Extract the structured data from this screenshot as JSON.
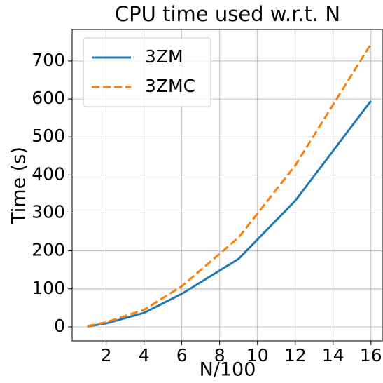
{
  "chart_data": {
    "type": "line",
    "title": "CPU time used w.r.t. N",
    "xlabel": "N/100",
    "ylabel": "Time (s)",
    "x": [
      1,
      2,
      4,
      6,
      9,
      12,
      16
    ],
    "series": [
      {
        "name": "3ZM",
        "color": "#1f77b4",
        "dash": false,
        "values": [
          1,
          9,
          37,
          87,
          179,
          332,
          595
        ]
      },
      {
        "name": "3ZMC",
        "color": "#ff7f0e",
        "dash": true,
        "values": [
          2,
          12,
          45,
          107,
          235,
          425,
          745
        ]
      }
    ],
    "xlim": [
      0.2,
      16.6
    ],
    "ylim": [
      -37,
      783
    ],
    "xticks": [
      2,
      4,
      6,
      8,
      10,
      12,
      14,
      16
    ],
    "yticks": [
      0,
      100,
      200,
      300,
      400,
      500,
      600,
      700
    ],
    "grid": true,
    "legend": "upper left"
  }
}
